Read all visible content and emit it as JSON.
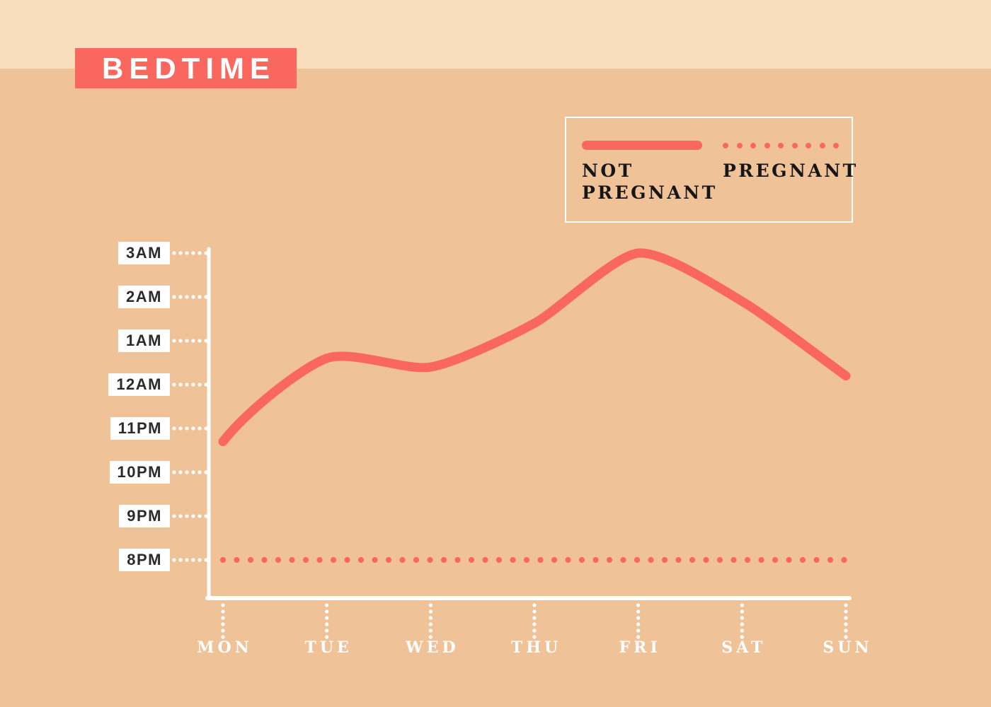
{
  "page": {
    "title": "BEDTIME"
  },
  "legend": {
    "items": [
      {
        "label": "NOT PREGNANT",
        "style": "solid"
      },
      {
        "label": "PREGNANT",
        "style": "dotted"
      }
    ]
  },
  "colors": {
    "accent": "#FA675F",
    "background": "#F0C298",
    "top_band": "#F8DEBD",
    "axis": "#FFFFFF",
    "tick_label_bg": "#FFFFFF",
    "tick_label_text": "#2B2B2B",
    "legend_text": "#161616",
    "title_text": "#FFFFFF"
  },
  "chart_data": {
    "type": "line",
    "title": "BEDTIME",
    "x_tick_labels": [
      "MON",
      "TUE",
      "WED",
      "THU",
      "FRI",
      "SAT",
      "SUN"
    ],
    "y_tick_labels": [
      "3AM",
      "2AM",
      "1AM",
      "12AM",
      "11PM",
      "10PM",
      "9PM",
      "8PM"
    ],
    "y_axis_range": [
      "8PM",
      "3AM"
    ],
    "grid": "off",
    "legend_position": "top-right",
    "series": [
      {
        "name": "NOT PREGNANT",
        "style": "solid",
        "x": [
          "MON",
          "TUE",
          "WED",
          "THU",
          "FRI",
          "SAT",
          "SUN"
        ],
        "bedtime": [
          "10:40 PM",
          "12:35 AM",
          "12:25 AM",
          "1:25 AM",
          "3:00 AM",
          "1:55 AM",
          "12:10 AM"
        ],
        "hours_after_8pm": [
          2.7,
          4.6,
          4.4,
          5.4,
          7.0,
          5.9,
          4.2
        ]
      },
      {
        "name": "PREGNANT",
        "style": "dotted",
        "x": [
          "MON",
          "TUE",
          "WED",
          "THU",
          "FRI",
          "SAT",
          "SUN"
        ],
        "bedtime": [
          "8:00 PM",
          "8:00 PM",
          "8:00 PM",
          "8:00 PM",
          "8:00 PM",
          "8:00 PM",
          "8:00 PM"
        ],
        "hours_after_8pm": [
          0,
          0,
          0,
          0,
          0,
          0,
          0
        ]
      }
    ]
  }
}
